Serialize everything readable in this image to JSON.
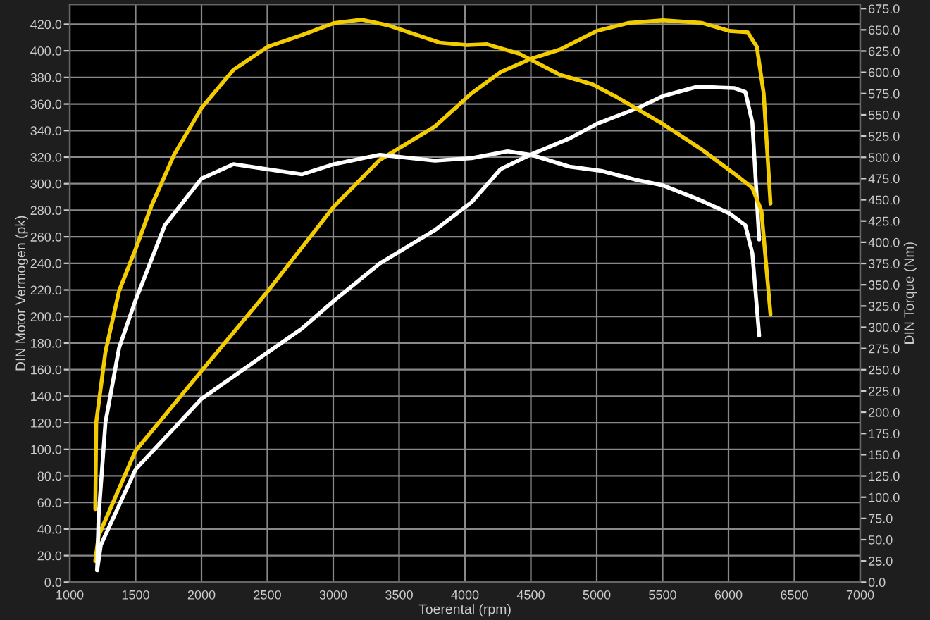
{
  "chart_data": {
    "type": "line",
    "xlabel": "Toerental (rpm)",
    "ylabel": "DIN Motor Vermogen (pk)",
    "y2label": "DIN Torque (Nm)",
    "xlim": [
      1000,
      7000
    ],
    "xticks": [
      1000,
      1500,
      2000,
      2500,
      3000,
      3500,
      4000,
      4500,
      5000,
      5500,
      6000,
      6500,
      7000
    ],
    "ylim": [
      0,
      435
    ],
    "yticks": [
      {
        "value": 0,
        "label": "0.0"
      },
      {
        "value": 20,
        "label": "20.0"
      },
      {
        "value": 40,
        "label": "40.0"
      },
      {
        "value": 60,
        "label": "60.0"
      },
      {
        "value": 80,
        "label": "80.0"
      },
      {
        "value": 100,
        "label": "100.0"
      },
      {
        "value": 120,
        "label": "120.0"
      },
      {
        "value": 140,
        "label": "140.0"
      },
      {
        "value": 160,
        "label": "160.0"
      },
      {
        "value": 180,
        "label": "180.0"
      },
      {
        "value": 200,
        "label": "200.0"
      },
      {
        "value": 220,
        "label": "220.0"
      },
      {
        "value": 240,
        "label": "240.0"
      },
      {
        "value": 260,
        "label": "260.0"
      },
      {
        "value": 280,
        "label": "280.0"
      },
      {
        "value": 300,
        "label": "300.0"
      },
      {
        "value": 320,
        "label": "320.0"
      },
      {
        "value": 340,
        "label": "340.0"
      },
      {
        "value": 360,
        "label": "360.0"
      },
      {
        "value": 380,
        "label": "380.0"
      },
      {
        "value": 400,
        "label": "400.0"
      },
      {
        "value": 420,
        "label": "420.0"
      }
    ],
    "y2lim": [
      0,
      680
    ],
    "y2ticks": [
      {
        "value": 0,
        "label": "0.0"
      },
      {
        "value": 25,
        "label": "25.0"
      },
      {
        "value": 50,
        "label": "50.0"
      },
      {
        "value": 75,
        "label": "75.0"
      },
      {
        "value": 100,
        "label": "100.0"
      },
      {
        "value": 125,
        "label": "125.0"
      },
      {
        "value": 150,
        "label": "150.0"
      },
      {
        "value": 175,
        "label": "175.0"
      },
      {
        "value": 200,
        "label": "200.0"
      },
      {
        "value": 225,
        "label": "225.0"
      },
      {
        "value": 250,
        "label": "250.0"
      },
      {
        "value": 275,
        "label": "275.0"
      },
      {
        "value": 300,
        "label": "300.0"
      },
      {
        "value": 325,
        "label": "325.0"
      },
      {
        "value": 350,
        "label": "350.0"
      },
      {
        "value": 375,
        "label": "375.0"
      },
      {
        "value": 400,
        "label": "400.0"
      },
      {
        "value": 425,
        "label": "425.0"
      },
      {
        "value": 450,
        "label": "450.0"
      },
      {
        "value": 475,
        "label": "475.0"
      },
      {
        "value": 500,
        "label": "500.0"
      },
      {
        "value": 525,
        "label": "525.0"
      },
      {
        "value": 550,
        "label": "550.0"
      },
      {
        "value": 575,
        "label": "575.0"
      },
      {
        "value": 600,
        "label": "600.0"
      },
      {
        "value": 625,
        "label": "625.0"
      },
      {
        "value": 650,
        "label": "650.0"
      },
      {
        "value": 675,
        "label": "675.0"
      }
    ],
    "grid": true,
    "marker": "none",
    "line_style": "solid",
    "series": [
      {
        "color": "#ffffff",
        "x": [
          1208,
          1236,
          1500,
          2000,
          2503,
          2764,
          3007,
          3354,
          3771,
          4049,
          4271,
          4500,
          4792,
          5000,
          5312,
          5503,
          5764,
          6042,
          6128,
          6181,
          6233
        ],
        "values": [
          9,
          28,
          85,
          138,
          173,
          191,
          212,
          240,
          265,
          286,
          311,
          322,
          334,
          345,
          357,
          366,
          373,
          372,
          369,
          346,
          258
        ]
      },
      {
        "color": "#f2cc00",
        "x": [
          1194,
          1219,
          1500,
          2000,
          2503,
          3007,
          3354,
          3771,
          4049,
          4271,
          4500,
          4722,
          5000,
          5243,
          5503,
          5799,
          6007,
          6146,
          6215,
          6267,
          6319
        ],
        "values": [
          16,
          35,
          99,
          159,
          219,
          283,
          318,
          343,
          368,
          384,
          394,
          401,
          415,
          421,
          423,
          421,
          415,
          414,
          403,
          368,
          285
        ]
      },
      {
        "color": "#ffffff",
        "axis": "y2",
        "x": [
          1208,
          1219,
          1271,
          1375,
          1500,
          1722,
          2000,
          2243,
          2503,
          2764,
          3007,
          3354,
          3771,
          4049,
          4323,
          4500,
          4792,
          5035,
          5312,
          5503,
          5764,
          6007,
          6128,
          6181,
          6233
        ],
        "values": [
          14,
          77,
          188,
          276,
          332,
          420,
          475,
          492,
          486,
          480,
          492,
          503,
          496,
          499,
          507,
          503,
          489,
          484,
          473,
          467,
          451,
          434,
          420,
          387,
          290
        ]
      },
      {
        "color": "#f2cc00",
        "axis": "y2",
        "x": [
          1194,
          1201,
          1271,
          1375,
          1500,
          1618,
          1792,
          2000,
          2243,
          2503,
          2764,
          3007,
          3215,
          3424,
          3806,
          4014,
          4167,
          4410,
          4722,
          4965,
          5139,
          5503,
          5799,
          6042,
          6181,
          6250,
          6319
        ],
        "values": [
          86,
          188,
          271,
          343,
          392,
          442,
          503,
          558,
          603,
          630,
          644,
          658,
          662,
          655,
          635,
          632,
          633,
          622,
          597,
          586,
          572,
          539,
          509,
          481,
          464,
          437,
          315
        ]
      }
    ]
  }
}
